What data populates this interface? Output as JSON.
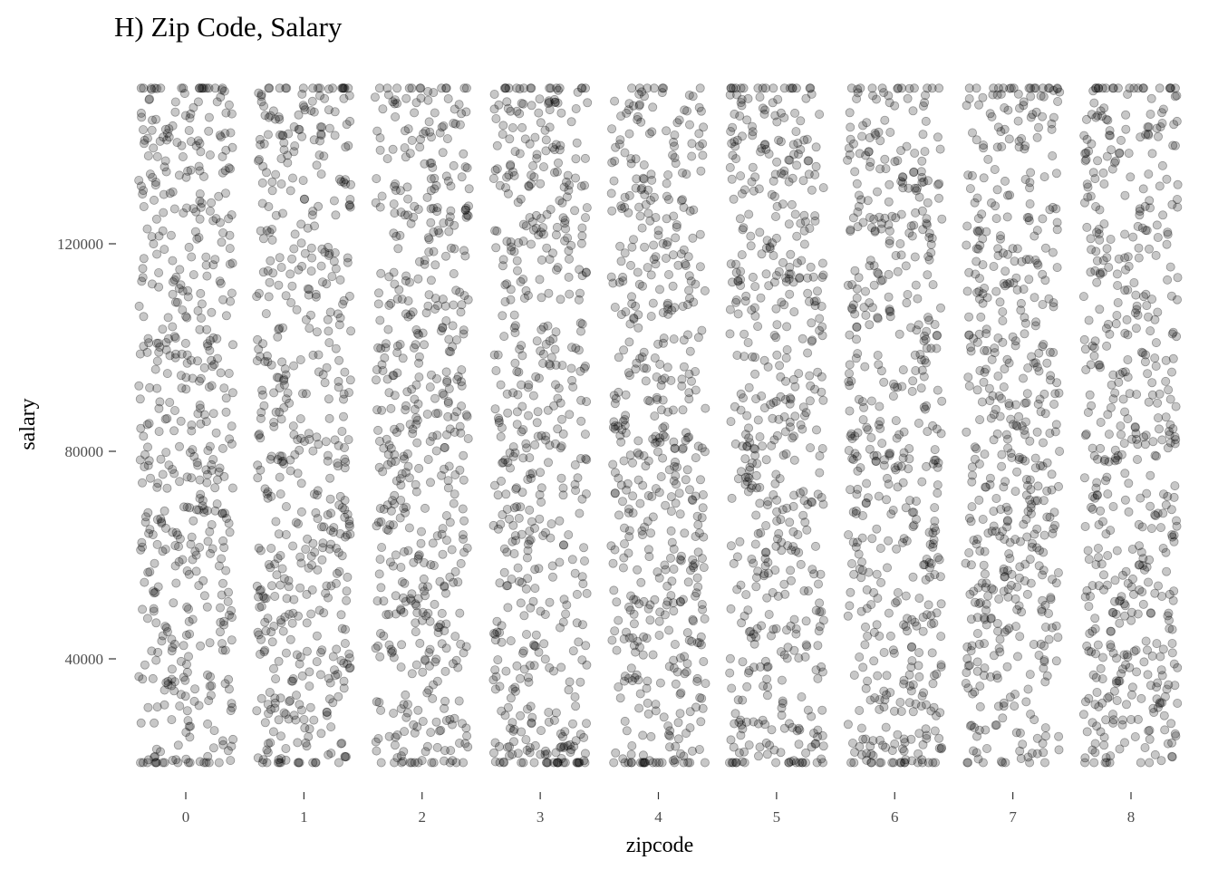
{
  "chart_data": {
    "type": "scatter",
    "title": "H) Zip Code, Salary",
    "xlabel": "zipcode",
    "ylabel": "salary",
    "x_categories": [
      "0",
      "1",
      "2",
      "3",
      "4",
      "5",
      "6",
      "7",
      "8"
    ],
    "y_ticks": [
      40000,
      80000,
      120000
    ],
    "y_tick_labels": [
      "40000",
      "80000",
      "120000"
    ],
    "ylim": [
      20000,
      150000
    ],
    "xlim": [
      -0.5,
      8.5
    ],
    "series": [
      {
        "category_values": [
          0,
          1,
          2,
          3,
          4,
          5,
          6,
          7,
          8
        ],
        "jitter_width": 0.4,
        "points_per_category": 520,
        "salary_range": [
          20000,
          150000
        ],
        "marker_color": "#000000",
        "marker_opacity": 0.22
      }
    ],
    "grid": false,
    "legend": "none"
  }
}
